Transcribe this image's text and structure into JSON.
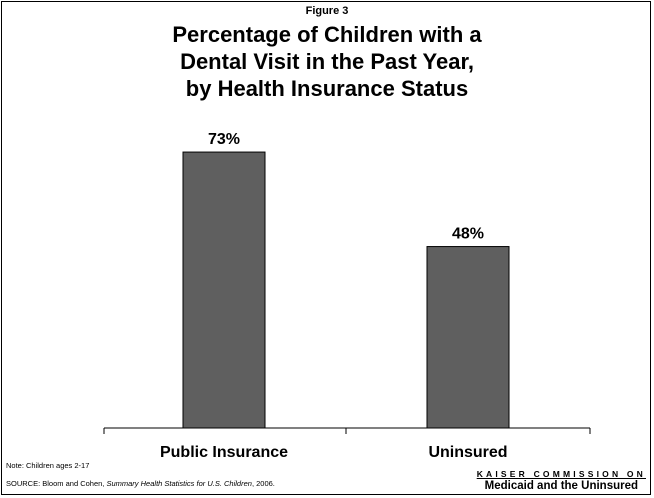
{
  "figure_label": "Figure 3",
  "title_lines": [
    "Percentage of Children with a",
    "Dental Visit in the Past Year,",
    "by Health Insurance Status"
  ],
  "note": "Note: Children ages 2-17",
  "source": {
    "prefix": "SOURCE: Bloom and Cohen, ",
    "title": "Summary Health Statistics for U.S. Children",
    "suffix": ", 2006."
  },
  "logo": {
    "line1": "KAISER COMMISSION ON",
    "line2": "Medicaid and the Uninsured"
  },
  "colors": {
    "bar": "#5f5f5f",
    "bar_outline": "#000000",
    "axis": "#000000"
  },
  "chart_data": {
    "type": "bar",
    "categories": [
      "Public Insurance",
      "Uninsured"
    ],
    "values": [
      73,
      48
    ],
    "data_labels": [
      "73%",
      "48%"
    ],
    "ylim": [
      0,
      100
    ],
    "title": "Percentage of Children with a Dental Visit in the Past Year, by Health Insurance Status",
    "xlabel": "",
    "ylabel": "",
    "grid": false,
    "legend": "none"
  }
}
